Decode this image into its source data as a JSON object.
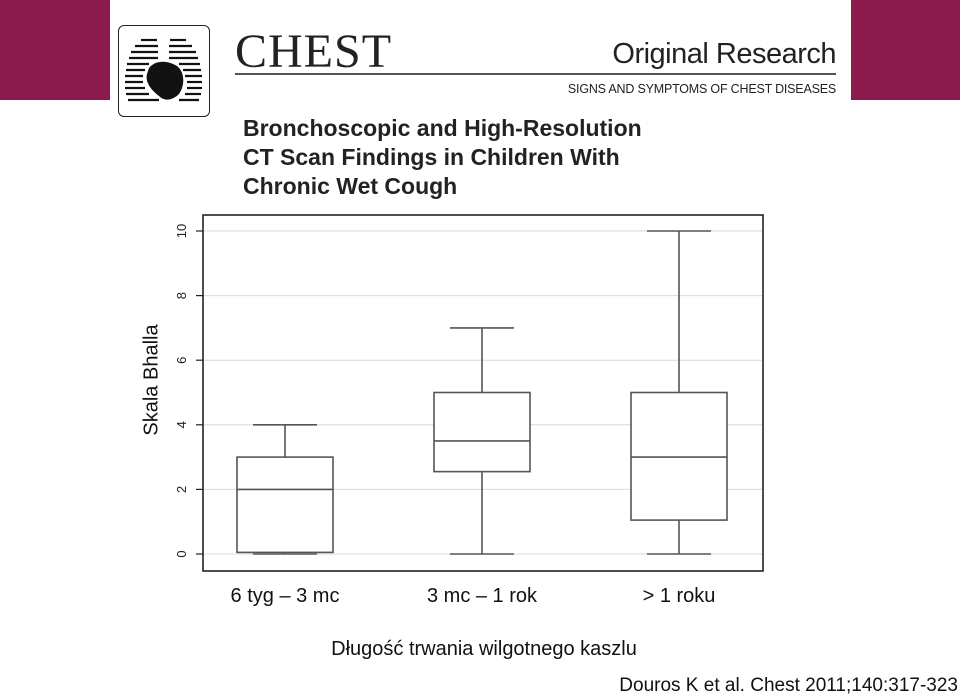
{
  "header": {
    "brand": "CHEST",
    "section": "Original Research",
    "subsection": "SIGNS AND SYMPTOMS OF CHEST DISEASES",
    "accent_color": "#8b1a4d"
  },
  "article_title_lines": [
    "Bronchoscopic and High-Resolution",
    "CT Scan Findings in Children With",
    "Chronic Wet Cough"
  ],
  "chart_data": {
    "type": "box",
    "ylabel": "Skala Bhalla",
    "xlabel": "Długość trwania wilgotnego kaszlu",
    "ylim": [
      0,
      10
    ],
    "yticks": [
      0,
      2,
      4,
      6,
      8,
      10
    ],
    "grid": true,
    "categories": [
      "6 tyg – 3 mc",
      "3 mc – 1 rok",
      "> 1 roku"
    ],
    "boxes": [
      {
        "min": 0,
        "q1": 0.05,
        "median": 2,
        "q3": 3,
        "max": 4
      },
      {
        "min": 0,
        "q1": 2.55,
        "median": 3.5,
        "q3": 5,
        "max": 7
      },
      {
        "min": 0,
        "q1": 1.05,
        "median": 3,
        "q3": 5,
        "max": 10
      }
    ]
  },
  "source": "Douros K et al. Chest 2011;140:317-323"
}
